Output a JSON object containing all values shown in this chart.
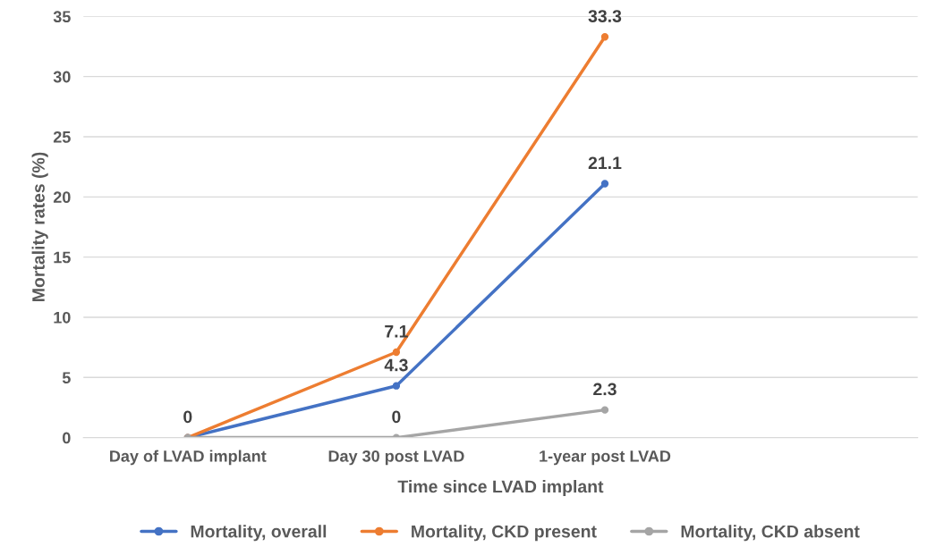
{
  "chart_data": {
    "type": "line",
    "xlabel": "Time since LVAD implant",
    "ylabel": "Mortality rates (%)",
    "categories": [
      "Day of LVAD implant",
      "Day 30 post LVAD",
      "1-year post LVAD",
      null
    ],
    "series": [
      {
        "name": "Mortality, overall",
        "color": "#4472c4",
        "values": [
          0,
          4.3,
          21.1,
          null
        ],
        "value_labels": [
          null,
          "4.3",
          "21.1",
          null
        ]
      },
      {
        "name": "Mortality, CKD present",
        "color": "#ed7d31",
        "values": [
          0,
          7.1,
          33.3,
          null
        ],
        "value_labels": [
          "0",
          "7.1",
          "33.3",
          null
        ]
      },
      {
        "name": "Mortality, CKD absent",
        "color": "#a5a5a5",
        "values": [
          0,
          0,
          2.3,
          null
        ],
        "value_labels": [
          null,
          "0",
          "2.3",
          null
        ]
      }
    ],
    "ylim": [
      0,
      35
    ],
    "yticks": [
      0,
      5,
      10,
      15,
      20,
      25,
      30,
      35
    ],
    "grid": "y",
    "legend": "bottom",
    "marker": "circle",
    "line_style": "solid"
  }
}
